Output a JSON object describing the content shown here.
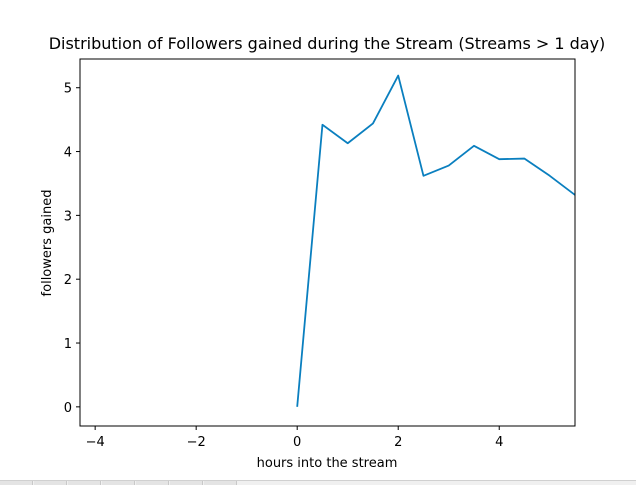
{
  "chart_data": {
    "type": "line",
    "title": "Distribution of Followers gained during the Stream (Streams > 1 day)",
    "xlabel": "hours into the stream",
    "ylabel": "followers gained",
    "xlim": [
      -4.3,
      5.5
    ],
    "ylim": [
      -0.3,
      5.45
    ],
    "xticks": [
      -4,
      -2,
      0,
      2,
      4
    ],
    "xtick_labels": [
      "−4",
      "−2",
      "0",
      "2",
      "4"
    ],
    "yticks": [
      0,
      1,
      2,
      3,
      4,
      5
    ],
    "ytick_labels": [
      "0",
      "1",
      "2",
      "3",
      "4",
      "5"
    ],
    "grid": false,
    "series": [
      {
        "color": "#0a7fbf",
        "x": [
          0,
          0.5,
          1.0,
          1.5,
          2.0,
          2.5,
          3.0,
          3.5,
          4.0,
          4.5,
          5.0,
          5.5
        ],
        "y": [
          0.0,
          4.42,
          4.13,
          4.44,
          5.19,
          3.62,
          3.78,
          4.09,
          3.88,
          3.89,
          3.62,
          3.32
        ]
      }
    ]
  }
}
